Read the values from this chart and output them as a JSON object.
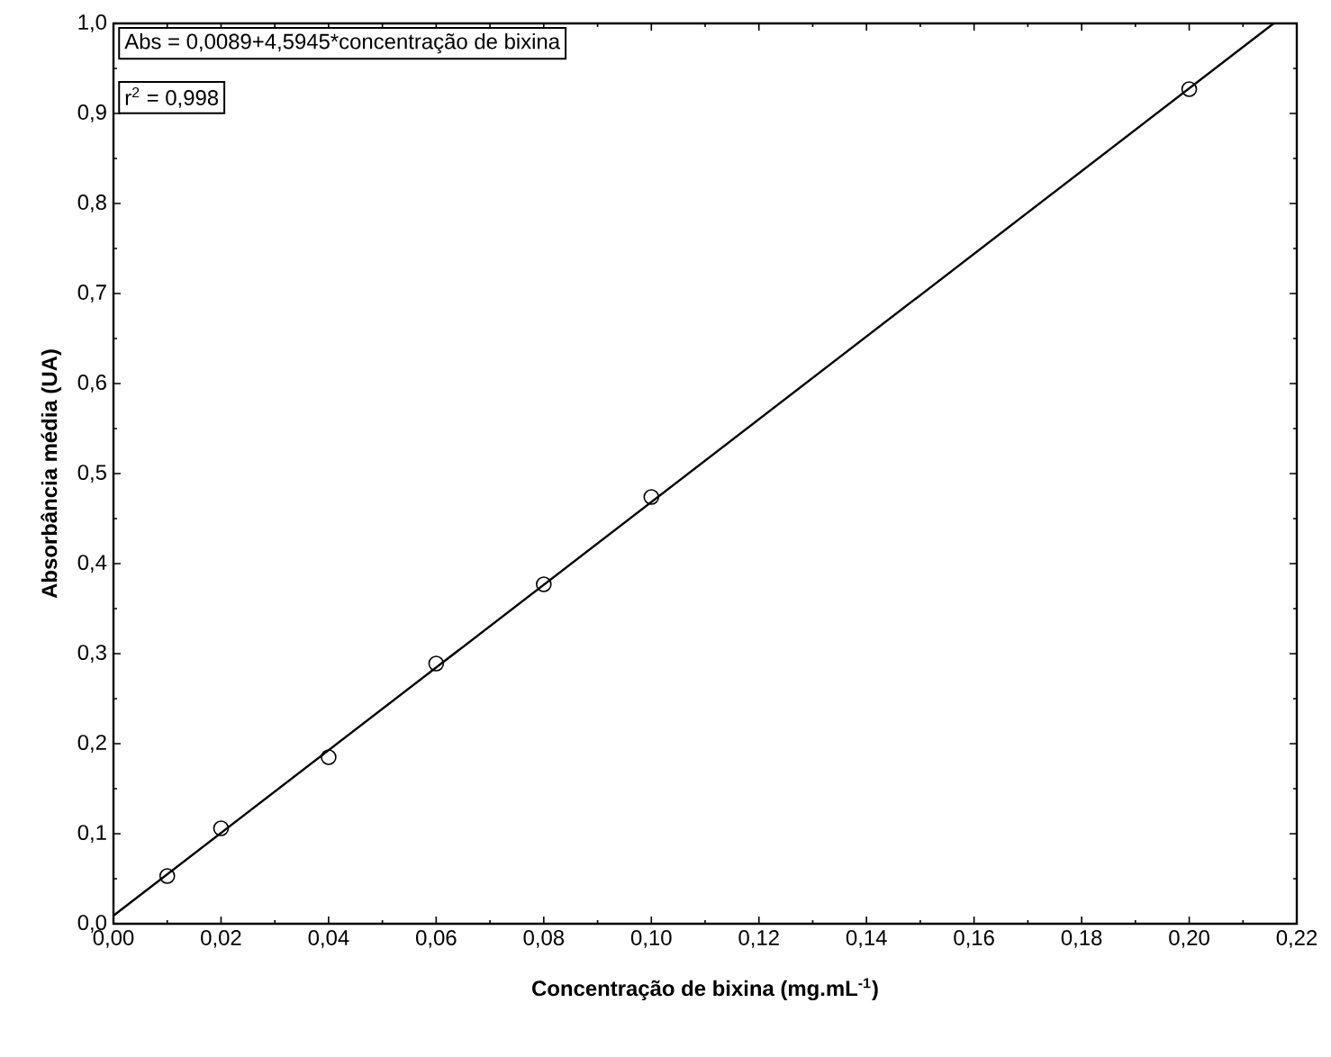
{
  "chart_data": {
    "type": "scatter",
    "xlabel": "Concentração de bixina (mg.mL$^{-1}$)",
    "ylabel": "Absorbância média (UA)",
    "annotations": [
      "Abs = 0,0089+4,5945*concentração de bixina",
      "r$^{2}$ = 0,998"
    ],
    "series": [
      {
        "color": "#000000",
        "marker": "circle",
        "x": [
          0.01,
          0.02,
          0.04,
          0.06,
          0.08,
          0.1,
          0.2
        ],
        "values": [
          0.053,
          0.106,
          0.185,
          0.289,
          0.377,
          0.474,
          0.927
        ]
      },
      {
        "type": "line",
        "color": "#000000",
        "marker": "none",
        "line_style": "solid",
        "x": [
          0,
          0.2157
        ],
        "values": [
          0.009,
          1.0
        ]
      }
    ],
    "xlim": [
      0,
      0.22
    ],
    "xticks": [
      {
        "value": 0,
        "label": "0,00"
      },
      {
        "value": 0.02,
        "label": "0,02"
      },
      {
        "value": 0.04,
        "label": "0,04"
      },
      {
        "value": 0.06,
        "label": "0,06"
      },
      {
        "value": 0.08,
        "label": "0,08"
      },
      {
        "value": 0.1,
        "label": "0,10"
      },
      {
        "value": 0.12,
        "label": "0,12"
      },
      {
        "value": 0.14,
        "label": "0,14"
      },
      {
        "value": 0.16,
        "label": "0,16"
      },
      {
        "value": 0.18,
        "label": "0,18"
      },
      {
        "value": 0.2,
        "label": "0,20"
      },
      {
        "value": 0.22,
        "label": "0,22"
      }
    ],
    "ylim": [
      0,
      1
    ],
    "yticks": [
      {
        "value": 0,
        "label": "0,0"
      },
      {
        "value": 0.1,
        "label": "0,1"
      },
      {
        "value": 0.2,
        "label": "0,2"
      },
      {
        "value": 0.3,
        "label": "0,3"
      },
      {
        "value": 0.4,
        "label": "0,4"
      },
      {
        "value": 0.5,
        "label": "0,5"
      },
      {
        "value": 0.6,
        "label": "0,6"
      },
      {
        "value": 0.7,
        "label": "0,7"
      },
      {
        "value": 0.8,
        "label": "0,8"
      },
      {
        "value": 0.9,
        "label": "0,9"
      },
      {
        "value": 1.0,
        "label": "1,0"
      }
    ],
    "grid": false
  }
}
